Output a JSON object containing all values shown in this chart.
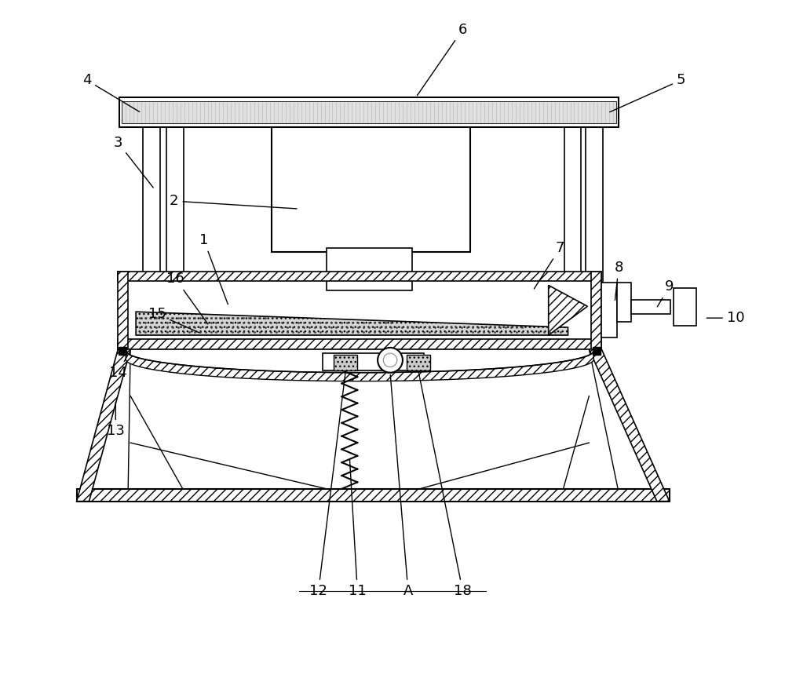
{
  "bg_color": "#ffffff",
  "lc": "#000000",
  "fig_width": 10.0,
  "fig_height": 8.6,
  "dpi": 100
}
